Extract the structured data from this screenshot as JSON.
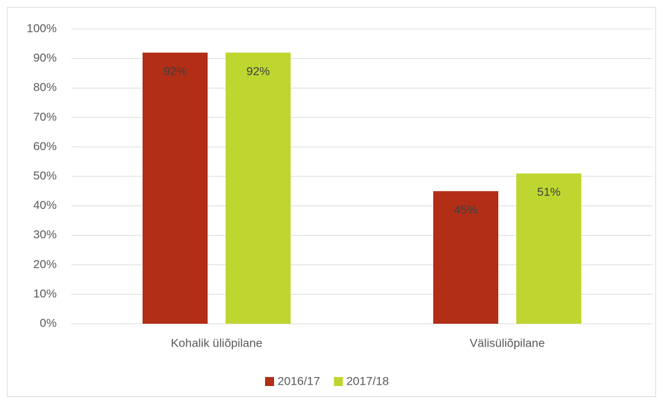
{
  "chart_data": {
    "type": "bar",
    "categories": [
      "Kohalik üliõpilane",
      "Välisüliõpilane"
    ],
    "series": [
      {
        "name": "2016/17",
        "color": "#b22e16",
        "values": [
          92,
          45
        ],
        "value_labels": [
          "92%",
          "45%"
        ]
      },
      {
        "name": "2017/18",
        "color": "#bfd630",
        "values": [
          92,
          51
        ],
        "value_labels": [
          "92%",
          "51%"
        ]
      }
    ],
    "ylim": [
      0,
      100
    ],
    "yticks": [
      {
        "value": 0,
        "label": "0%"
      },
      {
        "value": 10,
        "label": "10%"
      },
      {
        "value": 20,
        "label": "20%"
      },
      {
        "value": 30,
        "label": "30%"
      },
      {
        "value": 40,
        "label": "40%"
      },
      {
        "value": 50,
        "label": "50%"
      },
      {
        "value": 60,
        "label": "60%"
      },
      {
        "value": 70,
        "label": "70%"
      },
      {
        "value": 80,
        "label": "80%"
      },
      {
        "value": 90,
        "label": "90%"
      },
      {
        "value": 100,
        "label": "100%"
      }
    ],
    "grid": true,
    "legend": "bottom"
  }
}
